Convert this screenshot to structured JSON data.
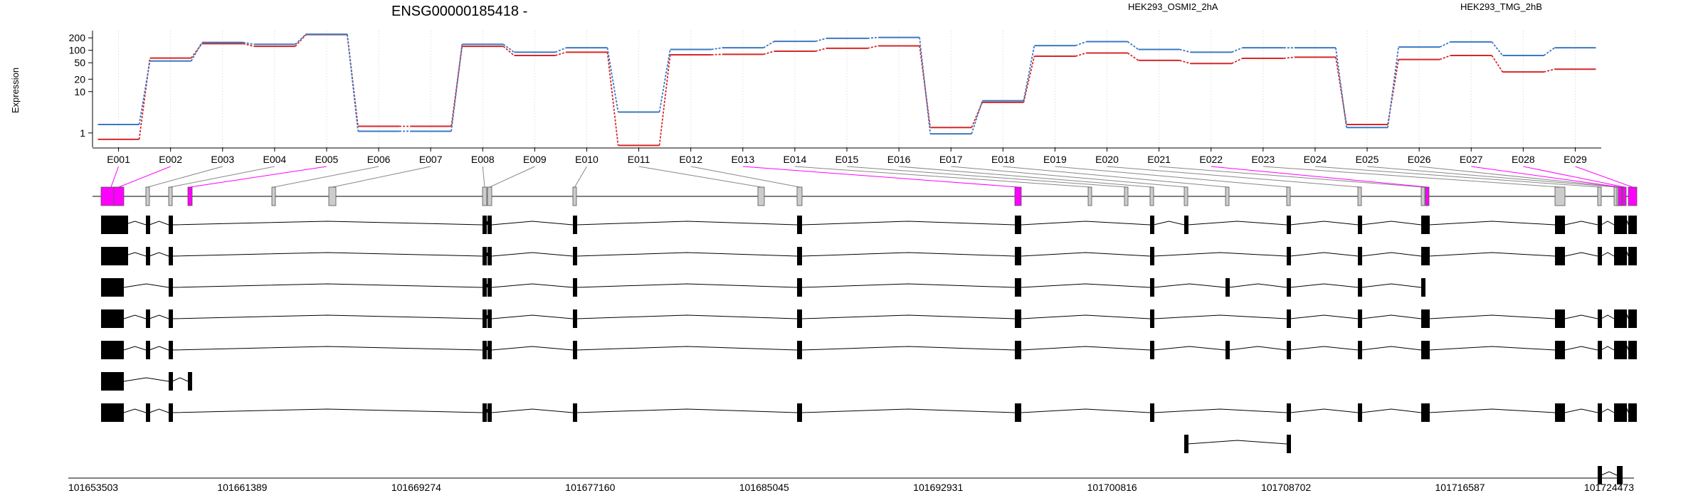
{
  "chart_data": {
    "type": "line",
    "title": "ENSG00000185418 -",
    "ylabel": "Expression",
    "yscale": "log",
    "ylim": [
      0.45,
      300
    ],
    "yticks": [
      "200",
      "100",
      "50",
      "20",
      "10",
      "1"
    ],
    "ytick_values": [
      200,
      100,
      50,
      20,
      10,
      1
    ],
    "grid": "vertical dotted",
    "legend": "top, two colored labels",
    "categories": [
      "E001",
      "E002",
      "E003",
      "E004",
      "E005",
      "E006",
      "E007",
      "E008",
      "E009",
      "E010",
      "E011",
      "E012",
      "E013",
      "E014",
      "E015",
      "E016",
      "E017",
      "E018",
      "E019",
      "E020",
      "E021",
      "E022",
      "E023",
      "E024",
      "E025",
      "E026",
      "E027",
      "E028",
      "E029"
    ],
    "series": [
      {
        "name": "HEK293_OSMI2_2hA",
        "color": "#d62728",
        "values": [
          0.7,
          65,
          145,
          125,
          240,
          1.45,
          1.45,
          125,
          75,
          90,
          0.5,
          78,
          80,
          95,
          112,
          128,
          1.35,
          5.5,
          72,
          86,
          57,
          48,
          64,
          68,
          1.6,
          60,
          75,
          30,
          35
        ]
      },
      {
        "name": "HEK293_TMG_2hB",
        "color": "#3b78c2",
        "values": [
          1.6,
          55,
          155,
          140,
          245,
          1.1,
          1.1,
          140,
          90,
          115,
          3.2,
          105,
          115,
          165,
          195,
          205,
          0.95,
          6.0,
          130,
          162,
          105,
          90,
          115,
          115,
          1.35,
          120,
          160,
          75,
          115
        ]
      }
    ],
    "exon_track": {
      "highlighted": [
        "E001",
        "E002",
        "E005",
        "E013",
        "E022",
        "E027",
        "E028",
        "E029"
      ],
      "colors": {
        "highlight": "#ff00ff",
        "normal": "#cccccc"
      }
    },
    "coordinate_axis": {
      "labels": [
        "101653503",
        "101661389",
        "101669274",
        "101677160",
        "101685045",
        "101692931",
        "101700816",
        "101708702",
        "101716587",
        "101724473"
      ]
    },
    "transcripts": [
      [
        "E001",
        "E002",
        "E003",
        "E004",
        "E008",
        "E009",
        "E010",
        "E012",
        "E013",
        "E016",
        "E017",
        "E019",
        "E020",
        "E021",
        "E022",
        "E023",
        "E024",
        "E025",
        "E026",
        "E027",
        "E028",
        "E029"
      ],
      [
        "E001",
        "E002",
        "E003",
        "E004",
        "E008",
        "E009",
        "E010",
        "E012",
        "E013",
        "E016",
        "E019",
        "E020",
        "E021",
        "E022",
        "E023",
        "E024",
        "E025",
        "E026",
        "E027",
        "E028",
        "E029"
      ],
      [
        "E001",
        "E002",
        "E004",
        "E008",
        "E009",
        "E010",
        "E012",
        "E013",
        "E016",
        "E018",
        "E019",
        "E020",
        "E021"
      ],
      [
        "E001",
        "E002",
        "E003",
        "E004",
        "E008",
        "E009",
        "E010",
        "E012",
        "E013",
        "E016",
        "E019",
        "E020",
        "E021",
        "E022",
        "E023",
        "E024",
        "E025",
        "E026",
        "E027",
        "E028",
        "E029"
      ],
      [
        "E001",
        "E002",
        "E003",
        "E004",
        "E008",
        "E009",
        "E010",
        "E012",
        "E013",
        "E016",
        "E018",
        "E019",
        "E020",
        "E021",
        "E022",
        "E023",
        "E024",
        "E025",
        "E026",
        "E027",
        "E028",
        "E029"
      ],
      [
        "E001",
        "E002",
        "E004",
        "E005"
      ],
      [
        "E001",
        "E002",
        "E003",
        "E004",
        "E008",
        "E009",
        "E010",
        "E012",
        "E013",
        "E016",
        "E019",
        "E020",
        "E021",
        "E022",
        "E023",
        "E024",
        "E025",
        "E026",
        "E027",
        "E028",
        "E029"
      ],
      [
        "E017",
        "E019"
      ],
      [
        "E024",
        "E026"
      ]
    ]
  }
}
